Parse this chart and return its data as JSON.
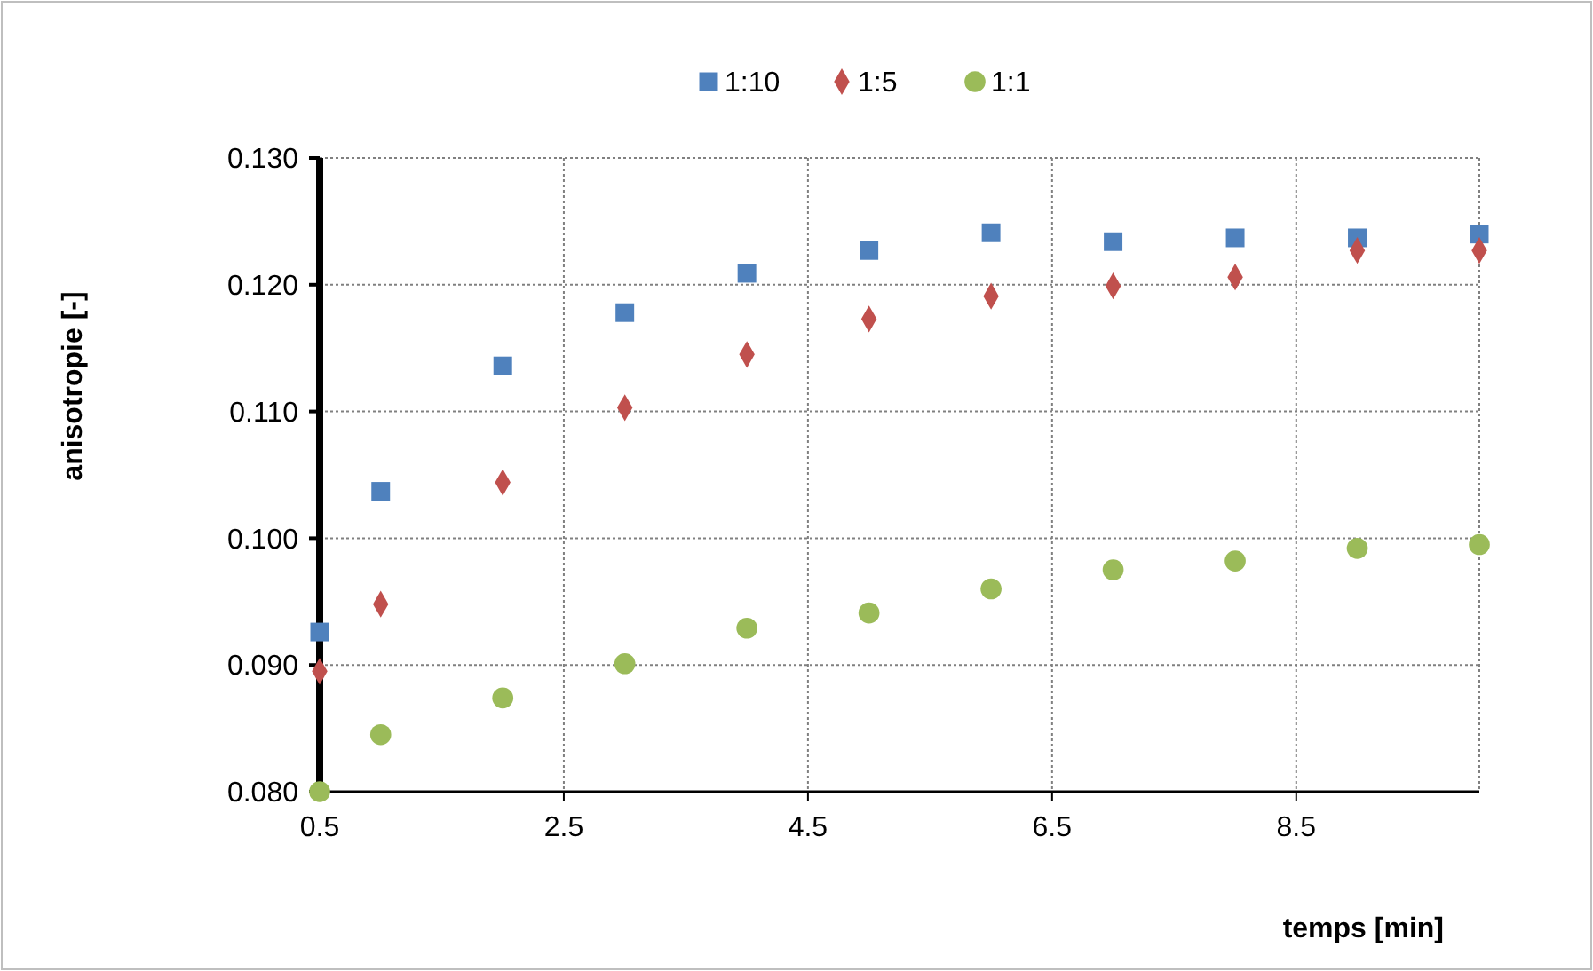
{
  "chart_data": {
    "type": "scatter",
    "xlabel": "temps [min]",
    "ylabel": "anisotropie [-]",
    "x": [
      0.5,
      1,
      2,
      3,
      4,
      5,
      6,
      7,
      8,
      9,
      10
    ],
    "xlim": [
      0.5,
      10
    ],
    "xticks": [
      0.5,
      2.5,
      4.5,
      6.5,
      8.5
    ],
    "ylim": [
      0.08,
      0.13
    ],
    "yticks": [
      {
        "value": 0.08,
        "label": "0.080"
      },
      {
        "value": 0.09,
        "label": "0.090"
      },
      {
        "value": 0.1,
        "label": "0.100"
      },
      {
        "value": 0.11,
        "label": "0.110"
      },
      {
        "value": 0.12,
        "label": "0.120"
      },
      {
        "value": 0.13,
        "label": "0.130"
      }
    ],
    "grid": true,
    "legend": "top",
    "series": [
      {
        "name": "1:10",
        "color": "#4f81bd",
        "marker": "square",
        "values": [
          0.0926,
          0.1037,
          0.1136,
          0.1178,
          0.1209,
          0.1227,
          0.1241,
          0.1234,
          0.1237,
          0.1237,
          0.124
        ]
      },
      {
        "name": "1:5",
        "color": "#c0504d",
        "marker": "diamond",
        "values": [
          0.0895,
          0.0948,
          0.1044,
          0.1103,
          0.1145,
          0.1173,
          0.1191,
          0.1199,
          0.1206,
          0.1227,
          0.1227
        ]
      },
      {
        "name": "1:1",
        "color": "#9bbb59",
        "marker": "circle",
        "values": [
          0.08,
          0.0845,
          0.0874,
          0.0901,
          0.0929,
          0.0941,
          0.096,
          0.0975,
          0.0982,
          0.0992,
          0.0995
        ]
      }
    ]
  }
}
